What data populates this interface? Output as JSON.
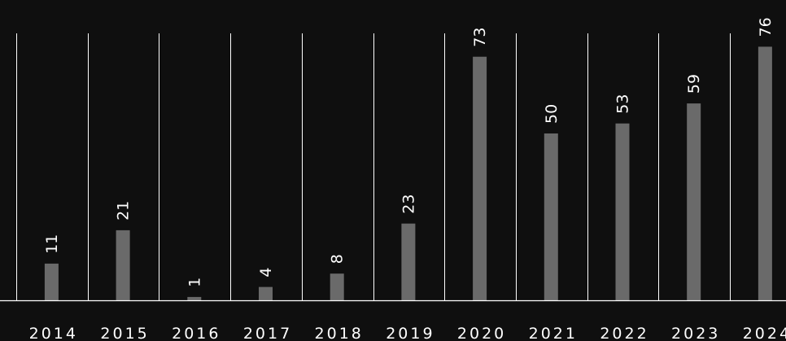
{
  "chart_data": {
    "type": "bar",
    "categories": [
      "2014",
      "2015",
      "2016",
      "2017",
      "2018",
      "2019",
      "2020",
      "2021",
      "2022",
      "2023",
      "2024"
    ],
    "values": [
      11,
      21,
      1,
      4,
      8,
      23,
      73,
      50,
      53,
      59,
      76
    ],
    "title": "",
    "xlabel": "",
    "ylabel": "",
    "ylim": [
      0,
      80
    ],
    "grid": "vertical",
    "data_labels": "rotated-vertical",
    "colors": {
      "background": "#0f0f0f",
      "bar": "#6a6a6a",
      "text": "#ffffff",
      "lines": "#ffffff"
    }
  }
}
